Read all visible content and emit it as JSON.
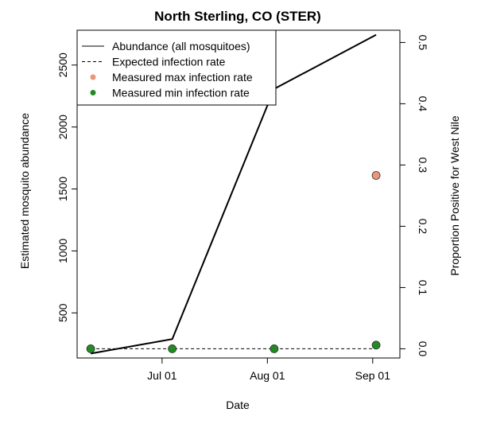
{
  "chart_data": {
    "type": "line",
    "title": "North Sterling, CO (STER)",
    "xlabel": "Date",
    "ylabel_left": "Estimated mosquito abundance",
    "ylabel_right": "Proportion Positive for West Nile",
    "x_ticks": [
      {
        "date": "2015-07-01",
        "label": "Jul 01"
      },
      {
        "date": "2015-08-01",
        "label": "Aug 01"
      },
      {
        "date": "2015-09-01",
        "label": "Sep 01"
      }
    ],
    "x_range": [
      "2015-06-06",
      "2015-09-09"
    ],
    "y_left_ticks": [
      500,
      1000,
      1500,
      2000,
      2500
    ],
    "y_left_range": [
      136,
      2781
    ],
    "y_right_ticks": [
      "0.0",
      "0.1",
      "0.2",
      "0.3",
      "0.4",
      "0.5"
    ],
    "y_right_range": [
      -0.015,
      0.52
    ],
    "series": [
      {
        "name": "Abundance (all mosquitoes)",
        "axis": "left",
        "style": "solid",
        "color": "#000000",
        "x": [
          "2015-06-10",
          "2015-07-04",
          "2015-08-03",
          "2015-09-02"
        ],
        "y": [
          172,
          289,
          2308,
          2744
        ]
      },
      {
        "name": "Expected infection rate",
        "axis": "right",
        "style": "dashed",
        "color": "#000000",
        "x": [
          "2015-06-10",
          "2015-09-02"
        ],
        "y": [
          0.0,
          0.0
        ]
      },
      {
        "name": "Measured max infection rate",
        "axis": "right",
        "style": "point",
        "color": "#e9967a",
        "x": [
          "2015-09-02"
        ],
        "y": [
          0.283
        ]
      },
      {
        "name": "Measured min infection rate",
        "axis": "right",
        "style": "point",
        "color": "#228b22",
        "x": [
          "2015-06-10",
          "2015-07-04",
          "2015-08-03",
          "2015-09-02"
        ],
        "y": [
          0.0,
          0.0,
          0.0,
          0.006
        ]
      }
    ],
    "legend_position": "top-left"
  }
}
